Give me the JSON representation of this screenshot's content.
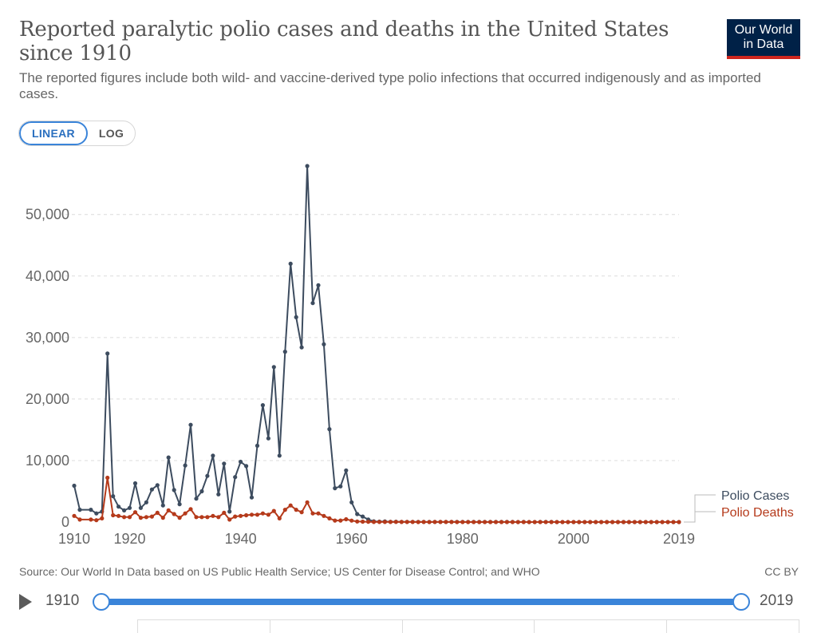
{
  "title": "Reported paralytic polio cases and deaths in the United States since 1910",
  "subtitle": "The reported figures include both wild- and vaccine-derived type polio infections that occurred indigenously and as imported cases.",
  "logo": {
    "line1": "Our World",
    "line2": "in Data"
  },
  "toggle": {
    "linear": "LINEAR",
    "log": "LOG",
    "active": "linear"
  },
  "footer": {
    "source": "Source: Our World In Data based on US Public Health Service; US Center for Disease Control; and WHO",
    "license": "CC BY"
  },
  "timeline": {
    "start": "1910",
    "end": "2019"
  },
  "colors": {
    "cases": "#3d4c5f",
    "deaths": "#b53a1b"
  },
  "chart_data": {
    "type": "line",
    "title": "Reported paralytic polio cases and deaths in the United States since 1910",
    "xlim": [
      1910,
      2019
    ],
    "ylim": [
      0,
      57879
    ],
    "x_ticks": [
      "1910",
      "1920",
      "1940",
      "1960",
      "1980",
      "2000",
      "2019"
    ],
    "y_ticks": [
      {
        "value": 0,
        "label": "0"
      },
      {
        "value": 10000,
        "label": "10,000"
      },
      {
        "value": 20000,
        "label": "20,000"
      },
      {
        "value": 30000,
        "label": "30,000"
      },
      {
        "value": 40000,
        "label": "40,000"
      },
      {
        "value": 50000,
        "label": "50,000"
      }
    ],
    "grid": true,
    "legend_position": "right",
    "series": [
      {
        "name": "Polio Cases",
        "color": "#3d4c5f",
        "points": [
          [
            1910,
            5900
          ],
          [
            1911,
            2000
          ],
          [
            1913,
            2000
          ],
          [
            1914,
            1400
          ],
          [
            1915,
            1700
          ],
          [
            1916,
            27400
          ],
          [
            1917,
            4200
          ],
          [
            1918,
            2500
          ],
          [
            1919,
            1900
          ],
          [
            1920,
            2300
          ],
          [
            1921,
            6300
          ],
          [
            1922,
            2300
          ],
          [
            1923,
            3200
          ],
          [
            1924,
            5300
          ],
          [
            1925,
            6000
          ],
          [
            1926,
            2700
          ],
          [
            1927,
            10500
          ],
          [
            1928,
            5200
          ],
          [
            1929,
            2900
          ],
          [
            1930,
            9200
          ],
          [
            1931,
            15800
          ],
          [
            1932,
            3800
          ],
          [
            1933,
            5000
          ],
          [
            1934,
            7500
          ],
          [
            1935,
            10800
          ],
          [
            1936,
            4500
          ],
          [
            1937,
            9500
          ],
          [
            1938,
            1700
          ],
          [
            1939,
            7300
          ],
          [
            1940,
            9800
          ],
          [
            1941,
            9100
          ],
          [
            1942,
            4000
          ],
          [
            1943,
            12400
          ],
          [
            1944,
            19000
          ],
          [
            1945,
            13600
          ],
          [
            1946,
            25200
          ],
          [
            1947,
            10800
          ],
          [
            1948,
            27700
          ],
          [
            1949,
            42000
          ],
          [
            1950,
            33300
          ],
          [
            1951,
            28400
          ],
          [
            1952,
            57879
          ],
          [
            1953,
            35600
          ],
          [
            1954,
            38500
          ],
          [
            1955,
            28900
          ],
          [
            1956,
            15100
          ],
          [
            1957,
            5500
          ],
          [
            1958,
            5800
          ],
          [
            1959,
            8400
          ],
          [
            1960,
            3200
          ],
          [
            1961,
            1300
          ],
          [
            1962,
            900
          ],
          [
            1963,
            400
          ],
          [
            1964,
            120
          ],
          [
            1965,
            70
          ],
          [
            1966,
            100
          ],
          [
            1967,
            40
          ],
          [
            1968,
            50
          ],
          [
            1969,
            20
          ],
          [
            1970,
            30
          ],
          [
            1971,
            20
          ],
          [
            1972,
            30
          ],
          [
            1973,
            8
          ],
          [
            1974,
            8
          ],
          [
            1975,
            10
          ],
          [
            1976,
            14
          ],
          [
            1977,
            18
          ],
          [
            1978,
            15
          ],
          [
            1979,
            30
          ],
          [
            1980,
            10
          ],
          [
            1981,
            10
          ],
          [
            1982,
            12
          ],
          [
            1983,
            13
          ],
          [
            1984,
            10
          ],
          [
            1985,
            10
          ],
          [
            1986,
            10
          ],
          [
            1987,
            9
          ],
          [
            1988,
            10
          ],
          [
            1989,
            10
          ],
          [
            1990,
            6
          ],
          [
            1991,
            10
          ],
          [
            1992,
            6
          ],
          [
            1993,
            5
          ],
          [
            1994,
            8
          ],
          [
            1995,
            7
          ],
          [
            1996,
            7
          ],
          [
            1997,
            6
          ],
          [
            1998,
            3
          ],
          [
            1999,
            2
          ],
          [
            2000,
            0
          ],
          [
            2001,
            0
          ],
          [
            2002,
            0
          ],
          [
            2003,
            0
          ],
          [
            2004,
            0
          ],
          [
            2005,
            1
          ],
          [
            2006,
            0
          ],
          [
            2007,
            0
          ],
          [
            2008,
            0
          ],
          [
            2009,
            0
          ],
          [
            2010,
            0
          ],
          [
            2011,
            0
          ],
          [
            2012,
            0
          ],
          [
            2013,
            0
          ],
          [
            2014,
            0
          ],
          [
            2015,
            0
          ],
          [
            2016,
            0
          ],
          [
            2017,
            0
          ],
          [
            2018,
            0
          ],
          [
            2019,
            0
          ]
        ]
      },
      {
        "name": "Polio Deaths",
        "color": "#b53a1b",
        "points": [
          [
            1910,
            1000
          ],
          [
            1911,
            400
          ],
          [
            1913,
            400
          ],
          [
            1914,
            300
          ],
          [
            1915,
            600
          ],
          [
            1916,
            7200
          ],
          [
            1917,
            1100
          ],
          [
            1918,
            1000
          ],
          [
            1919,
            800
          ],
          [
            1920,
            800
          ],
          [
            1921,
            1600
          ],
          [
            1922,
            700
          ],
          [
            1923,
            800
          ],
          [
            1924,
            900
          ],
          [
            1925,
            1500
          ],
          [
            1926,
            700
          ],
          [
            1927,
            1900
          ],
          [
            1928,
            1300
          ],
          [
            1929,
            700
          ],
          [
            1930,
            1400
          ],
          [
            1931,
            2100
          ],
          [
            1932,
            800
          ],
          [
            1933,
            800
          ],
          [
            1934,
            800
          ],
          [
            1935,
            1000
          ],
          [
            1936,
            800
          ],
          [
            1937,
            1500
          ],
          [
            1938,
            400
          ],
          [
            1939,
            900
          ],
          [
            1940,
            1000
          ],
          [
            1941,
            1100
          ],
          [
            1942,
            1200
          ],
          [
            1943,
            1200
          ],
          [
            1944,
            1400
          ],
          [
            1945,
            1200
          ],
          [
            1946,
            1800
          ],
          [
            1947,
            600
          ],
          [
            1948,
            2000
          ],
          [
            1949,
            2700
          ],
          [
            1950,
            2000
          ],
          [
            1951,
            1600
          ],
          [
            1952,
            3200
          ],
          [
            1953,
            1400
          ],
          [
            1954,
            1400
          ],
          [
            1955,
            1000
          ],
          [
            1956,
            600
          ],
          [
            1957,
            250
          ],
          [
            1958,
            250
          ],
          [
            1959,
            450
          ],
          [
            1960,
            230
          ],
          [
            1961,
            90
          ],
          [
            1962,
            60
          ],
          [
            1963,
            40
          ],
          [
            1964,
            17
          ],
          [
            1965,
            16
          ],
          [
            1966,
            9
          ],
          [
            1967,
            16
          ],
          [
            1968,
            24
          ],
          [
            1969,
            13
          ],
          [
            1970,
            7
          ],
          [
            1971,
            18
          ],
          [
            1972,
            2
          ],
          [
            1973,
            10
          ],
          [
            1974,
            3
          ],
          [
            1975,
            9
          ],
          [
            1976,
            16
          ],
          [
            1977,
            16
          ],
          [
            1978,
            13
          ],
          [
            1979,
            4
          ],
          [
            1980,
            0
          ],
          [
            1981,
            0
          ],
          [
            1982,
            0
          ],
          [
            1983,
            0
          ],
          [
            1984,
            0
          ],
          [
            1985,
            0
          ],
          [
            1986,
            0
          ],
          [
            1987,
            0
          ],
          [
            1988,
            0
          ],
          [
            1989,
            0
          ],
          [
            1990,
            0
          ],
          [
            1991,
            0
          ],
          [
            1992,
            0
          ],
          [
            1993,
            0
          ],
          [
            1994,
            0
          ],
          [
            1995,
            0
          ],
          [
            1996,
            0
          ],
          [
            1997,
            0
          ],
          [
            1998,
            0
          ],
          [
            1999,
            0
          ],
          [
            2000,
            0
          ],
          [
            2001,
            0
          ],
          [
            2002,
            0
          ],
          [
            2003,
            0
          ],
          [
            2004,
            0
          ],
          [
            2005,
            0
          ],
          [
            2006,
            0
          ],
          [
            2007,
            0
          ],
          [
            2008,
            0
          ],
          [
            2009,
            0
          ],
          [
            2010,
            0
          ],
          [
            2011,
            0
          ],
          [
            2012,
            0
          ],
          [
            2013,
            0
          ],
          [
            2014,
            0
          ],
          [
            2015,
            0
          ],
          [
            2016,
            0
          ],
          [
            2017,
            0
          ],
          [
            2018,
            0
          ],
          [
            2019,
            0
          ]
        ]
      }
    ]
  }
}
